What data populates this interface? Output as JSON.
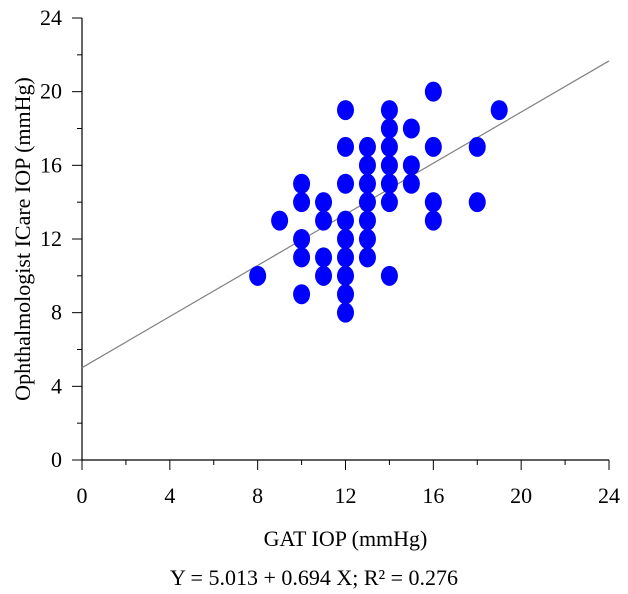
{
  "chart_data": {
    "type": "scatter",
    "xlabel": "GAT IOP (mmHg)",
    "ylabel": "Ophthalmologist ICare IOP (mmHg)",
    "xlim": [
      0,
      24
    ],
    "ylim": [
      0,
      24
    ],
    "x_ticks": [
      0,
      4,
      8,
      12,
      16,
      20,
      24
    ],
    "y_ticks": [
      0,
      4,
      8,
      12,
      16,
      20,
      24
    ],
    "grid": false,
    "marker_color": "#0000ff",
    "line_color": "#808080",
    "regression": {
      "intercept": 5.013,
      "slope": 0.694
    },
    "equation": "Y = 5.013 + 0.694 X; R² = 0.276",
    "points": [
      {
        "x": 8,
        "y": 10
      },
      {
        "x": 9,
        "y": 13
      },
      {
        "x": 10,
        "y": 9
      },
      {
        "x": 10,
        "y": 11
      },
      {
        "x": 10,
        "y": 12
      },
      {
        "x": 10,
        "y": 14
      },
      {
        "x": 10,
        "y": 15
      },
      {
        "x": 11,
        "y": 10
      },
      {
        "x": 11,
        "y": 11
      },
      {
        "x": 11,
        "y": 13
      },
      {
        "x": 11,
        "y": 14
      },
      {
        "x": 12,
        "y": 8
      },
      {
        "x": 12,
        "y": 9
      },
      {
        "x": 12,
        "y": 10
      },
      {
        "x": 12,
        "y": 11
      },
      {
        "x": 12,
        "y": 12
      },
      {
        "x": 12,
        "y": 13
      },
      {
        "x": 12,
        "y": 15
      },
      {
        "x": 12,
        "y": 17
      },
      {
        "x": 12,
        "y": 19
      },
      {
        "x": 13,
        "y": 11
      },
      {
        "x": 13,
        "y": 12
      },
      {
        "x": 13,
        "y": 13
      },
      {
        "x": 13,
        "y": 14
      },
      {
        "x": 13,
        "y": 15
      },
      {
        "x": 13,
        "y": 16
      },
      {
        "x": 13,
        "y": 17
      },
      {
        "x": 14,
        "y": 10
      },
      {
        "x": 14,
        "y": 14
      },
      {
        "x": 14,
        "y": 15
      },
      {
        "x": 14,
        "y": 16
      },
      {
        "x": 14,
        "y": 17
      },
      {
        "x": 14,
        "y": 18
      },
      {
        "x": 14,
        "y": 19
      },
      {
        "x": 15,
        "y": 15
      },
      {
        "x": 15,
        "y": 16
      },
      {
        "x": 15,
        "y": 18
      },
      {
        "x": 16,
        "y": 13
      },
      {
        "x": 16,
        "y": 14
      },
      {
        "x": 16,
        "y": 17
      },
      {
        "x": 16,
        "y": 20
      },
      {
        "x": 18,
        "y": 14
      },
      {
        "x": 18,
        "y": 17
      },
      {
        "x": 19,
        "y": 19
      }
    ]
  }
}
